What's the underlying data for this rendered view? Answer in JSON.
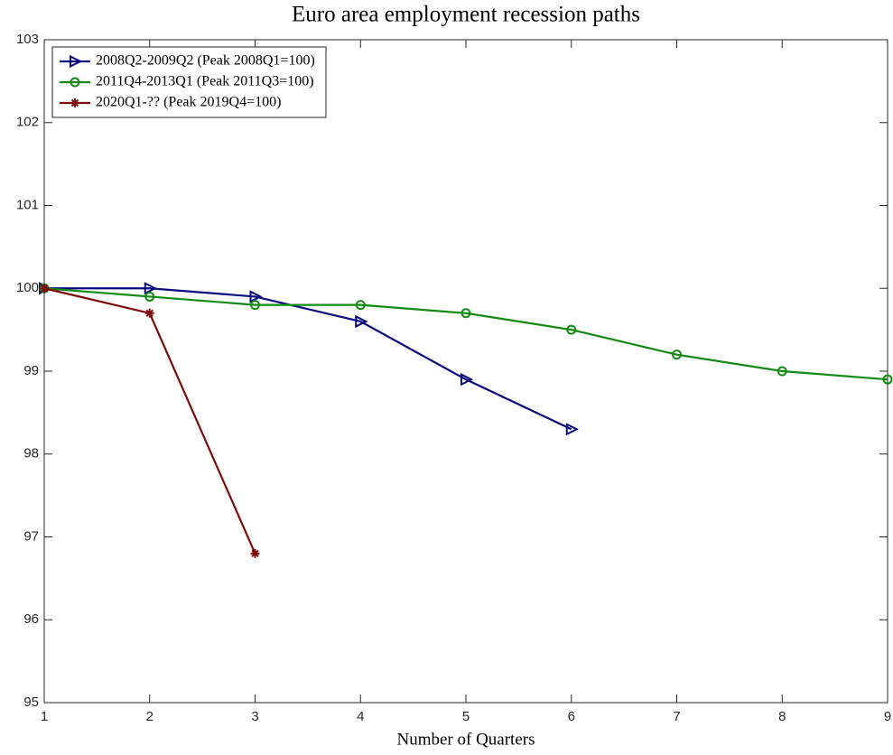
{
  "chart_data": {
    "type": "line",
    "title": "Euro area employment recession paths",
    "x_label": "Number of Quarters",
    "x": [
      1,
      2,
      3,
      4,
      5,
      6,
      7,
      8,
      9
    ],
    "series": [
      {
        "name": "2008Q2-2009Q2 (Peak 2008Q1=100)",
        "color": "#0a0a80",
        "marker": "triangle-right",
        "values": [
          100,
          100,
          99.9,
          99.6,
          98.9,
          98.3,
          null,
          null,
          null
        ]
      },
      {
        "name": "2011Q4-2013Q1 (Peak 2011Q3=100)",
        "color": "#138a13",
        "marker": "circle",
        "values": [
          100,
          99.9,
          99.8,
          99.8,
          99.7,
          99.5,
          99.2,
          99.0,
          98.9
        ]
      },
      {
        "name": "2020Q1-?? (Peak 2019Q4=100)",
        "color": "#7f0a0a",
        "marker": "asterisk",
        "values": [
          100,
          99.7,
          96.8,
          null,
          null,
          null,
          null,
          null,
          null
        ]
      }
    ],
    "xlim": [
      1,
      9
    ],
    "xticks": [
      1,
      2,
      3,
      4,
      5,
      6,
      7,
      8,
      9
    ],
    "ylim": [
      95,
      103
    ],
    "yticks": [
      95,
      96,
      97,
      98,
      99,
      100,
      101,
      102,
      103
    ],
    "grid": false,
    "legend": "upper-left"
  }
}
